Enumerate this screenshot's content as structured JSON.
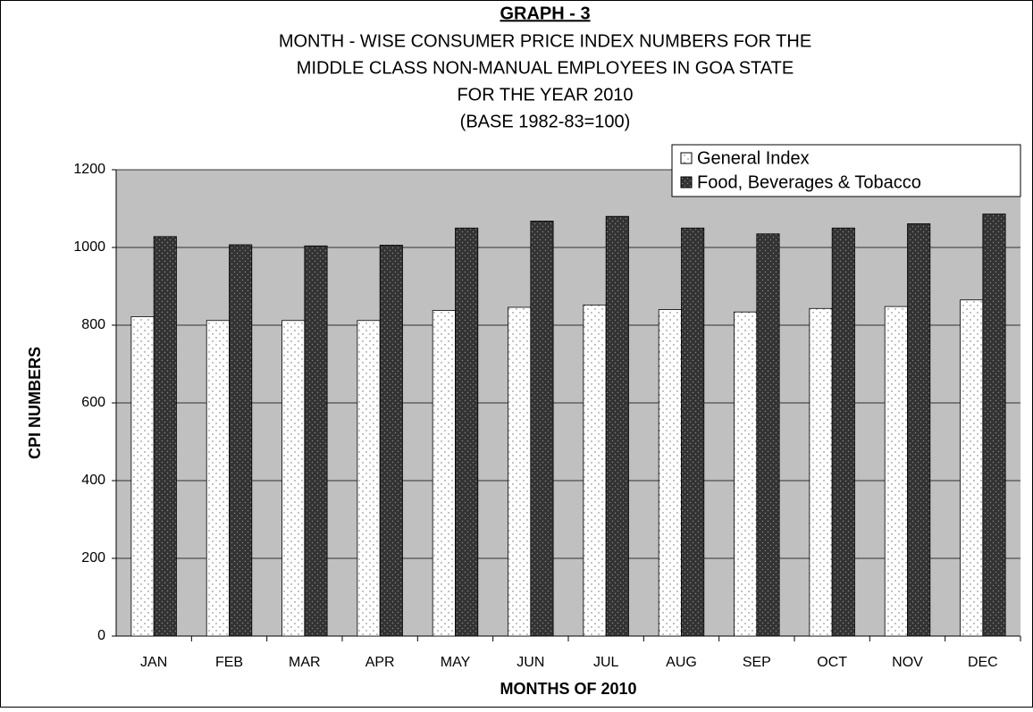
{
  "chart_data": {
    "type": "bar",
    "title": "GRAPH - 3",
    "subtitle": [
      "MONTH - WISE CONSUMER PRICE INDEX NUMBERS FOR THE",
      "MIDDLE CLASS NON-MANUAL EMPLOYEES IN GOA STATE",
      "FOR THE YEAR 2010",
      "(BASE 1982-83=100)"
    ],
    "x_label": "MONTHS OF 2010",
    "y_label": "CPI NUMBERS",
    "categories": [
      "JAN",
      "FEB",
      "MAR",
      "APR",
      "MAY",
      "JUN",
      "JUL",
      "AUG",
      "SEP",
      "OCT",
      "NOV",
      "DEC"
    ],
    "series": [
      {
        "name": "General Index",
        "color": "#ffffff",
        "values": [
          822,
          812,
          812,
          812,
          838,
          846,
          852,
          840,
          834,
          843,
          848,
          865
        ]
      },
      {
        "name": "Food, Beverages & Tobacco",
        "color": "#333333",
        "values": [
          1028,
          1007,
          1004,
          1006,
          1050,
          1068,
          1080,
          1050,
          1035,
          1050,
          1061,
          1086
        ]
      }
    ],
    "ylim": [
      0,
      1200
    ],
    "yticks": [
      0,
      200,
      400,
      600,
      800,
      1000,
      1200
    ],
    "grid": true,
    "legend": "top-right"
  }
}
